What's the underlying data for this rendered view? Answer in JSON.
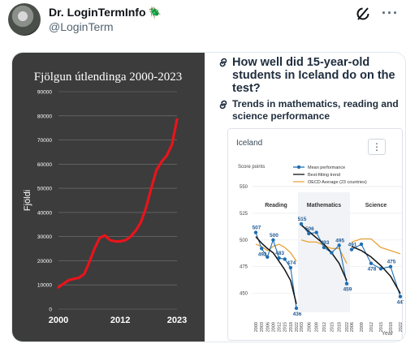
{
  "tweet": {
    "author_name": "Dr. LoginTermInfo",
    "handle": "@LoginTerm"
  },
  "left_chart": {
    "chart_data": {
      "type": "line",
      "title": "Fjölgun útlendinga 2000-2023",
      "ylabel": "Fjöldi",
      "xlabel": "",
      "ylim": [
        0,
        90000
      ],
      "yticks": [
        0,
        10000,
        20000,
        30000,
        40000,
        50000,
        60000,
        70000,
        80000,
        90000
      ],
      "xticks": [
        "2000",
        "2012",
        "2023"
      ],
      "grid": true,
      "line_color": "#e8141b",
      "series": [
        {
          "x": [
            2000,
            2001,
            2002,
            2003,
            2004,
            2005,
            2006,
            2007,
            2008,
            2009,
            2010,
            2011,
            2012,
            2013,
            2014,
            2015,
            2016,
            2017,
            2018,
            2019,
            2020,
            2021,
            2022,
            2023
          ],
          "values": [
            9000,
            10500,
            12000,
            12500,
            13000,
            14500,
            19500,
            25000,
            29500,
            30500,
            28500,
            28000,
            28000,
            28500,
            30000,
            32500,
            36000,
            42000,
            50000,
            57500,
            61000,
            63500,
            68000,
            78500
          ]
        }
      ]
    }
  },
  "right_panel": {
    "heading": "How well did 15-year-old students in Iceland do on the test?",
    "subheading": "Trends in mathematics, reading and science performance",
    "chart_data": {
      "type": "line",
      "country": "Iceland",
      "ylabel": "Score points",
      "xlabel": "Year",
      "ylim": [
        436,
        550
      ],
      "yticks": [
        450,
        475,
        500,
        525,
        550
      ],
      "legend": [
        "Mean performance",
        "Best-fitting trend",
        "OECD Average (23 countries)"
      ],
      "legend_colors": [
        "#1f6fb2",
        "#111111",
        "#e8a33a"
      ],
      "panels": [
        {
          "name": "Reading",
          "xticks": [
            "2000",
            "2003",
            "2006",
            "2009",
            "2012",
            "2015",
            "2018",
            "2022"
          ],
          "mean": [
            507,
            492,
            484,
            500,
            483,
            482,
            474,
            436
          ],
          "labels": [
            "507",
            "492",
            "",
            "500",
            "483",
            "",
            "474",
            "436"
          ],
          "trend": [
            503,
            497,
            492,
            488,
            480,
            472,
            462,
            440
          ],
          "oecd": [
            496,
            494,
            490,
            494,
            496,
            493,
            488,
            480
          ]
        },
        {
          "name": "Mathematics",
          "xticks": [
            "2003",
            "2006",
            "2009",
            "2012",
            "2015",
            "2018",
            "2022"
          ],
          "mean": [
            515,
            506,
            507,
            493,
            488,
            495,
            459
          ],
          "labels": [
            "515",
            "506",
            "",
            "493",
            "",
            "495",
            "459"
          ],
          "trend": [
            514,
            508,
            502,
            496,
            488,
            478,
            462
          ],
          "oecd": [
            500,
            498,
            498,
            495,
            492,
            492,
            478
          ]
        },
        {
          "name": "Science",
          "xticks": [
            "2006",
            "2009",
            "2012",
            "2015",
            "2018",
            "2022"
          ],
          "mean": [
            491,
            496,
            478,
            473,
            475,
            447
          ],
          "labels": [
            "491",
            "",
            "478",
            "",
            "475",
            "447"
          ],
          "trend": [
            494,
            490,
            484,
            476,
            466,
            450
          ],
          "oecd": [
            498,
            501,
            501,
            493,
            490,
            487
          ]
        }
      ]
    }
  }
}
